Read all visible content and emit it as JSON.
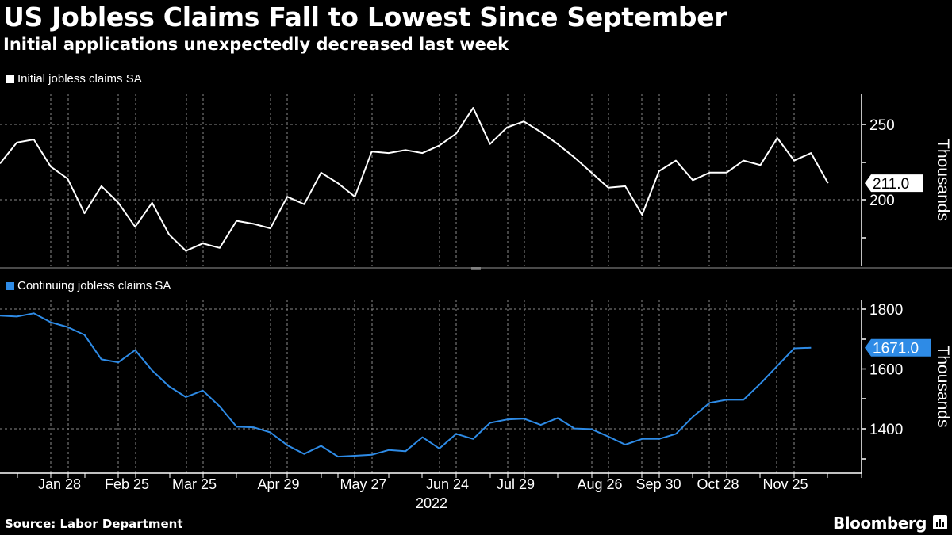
{
  "header": {
    "title": "US Jobless Claims Fall to Lowest Since September",
    "subtitle": "Initial applications unexpectedly decreased last week"
  },
  "footer": {
    "source": "Source: Labor Department",
    "brand": "Bloomberg"
  },
  "colors": {
    "background": "#000000",
    "initial_line": "#ffffff",
    "continuing_line": "#2e8be6",
    "grid": "#8a8a8a",
    "divider": "#4a4a4a"
  },
  "chart_data": [
    {
      "type": "line",
      "title": "Initial jobless claims SA",
      "legend": [
        "Initial jobless claims SA"
      ],
      "ylabel": "Thousands",
      "yticks": [
        200,
        250
      ],
      "ylim": [
        165,
        270
      ],
      "grid": true,
      "last_value_label": "211.0",
      "x_tick_labels": [
        "Jan 28",
        "Feb 25",
        "Mar 25",
        "Apr 29",
        "May 27",
        "Jun 24",
        "Jul 29",
        "Aug 26",
        "Sep 30",
        "Oct 28",
        "Nov 25"
      ],
      "x_year_label": "2022",
      "series": [
        {
          "name": "Initial jobless claims SA",
          "values": [
            224,
            238,
            240,
            222,
            214,
            191,
            209,
            198,
            182,
            198,
            177,
            166,
            171,
            168,
            186,
            184,
            181,
            202,
            197,
            218,
            211,
            202,
            232,
            231,
            233,
            231,
            236,
            244,
            261,
            237,
            248,
            252,
            245,
            237,
            228,
            218,
            208,
            209,
            190,
            219,
            226,
            213,
            218,
            218,
            226,
            223,
            241,
            226,
            231,
            211
          ]
        }
      ]
    },
    {
      "type": "line",
      "title": "Continuing jobless claims SA",
      "legend": [
        "Continuing jobless claims SA"
      ],
      "ylabel": "Thousands",
      "yticks": [
        1400,
        1600,
        1800
      ],
      "ylim": [
        1255,
        1835
      ],
      "grid": true,
      "last_value_label": "1671.0",
      "x_tick_labels": [
        "Jan 28",
        "Feb 25",
        "Mar 25",
        "Apr 29",
        "May 27",
        "Jun 24",
        "Jul 29",
        "Aug 26",
        "Sep 30",
        "Oct 28",
        "Nov 25"
      ],
      "x_year_label": "2022",
      "series": [
        {
          "name": "Continuing jobless claims SA",
          "values": [
            1778,
            1775,
            1786,
            1756,
            1740,
            1714,
            1632,
            1622,
            1663,
            1595,
            1542,
            1506,
            1528,
            1475,
            1407,
            1405,
            1388,
            1345,
            1316,
            1343,
            1307,
            1310,
            1313,
            1329,
            1325,
            1372,
            1334,
            1383,
            1366,
            1420,
            1431,
            1434,
            1413,
            1436,
            1401,
            1399,
            1374,
            1347,
            1366,
            1366,
            1383,
            1440,
            1487,
            1497,
            1497,
            1551,
            1610,
            1669,
            1671
          ]
        }
      ]
    }
  ]
}
